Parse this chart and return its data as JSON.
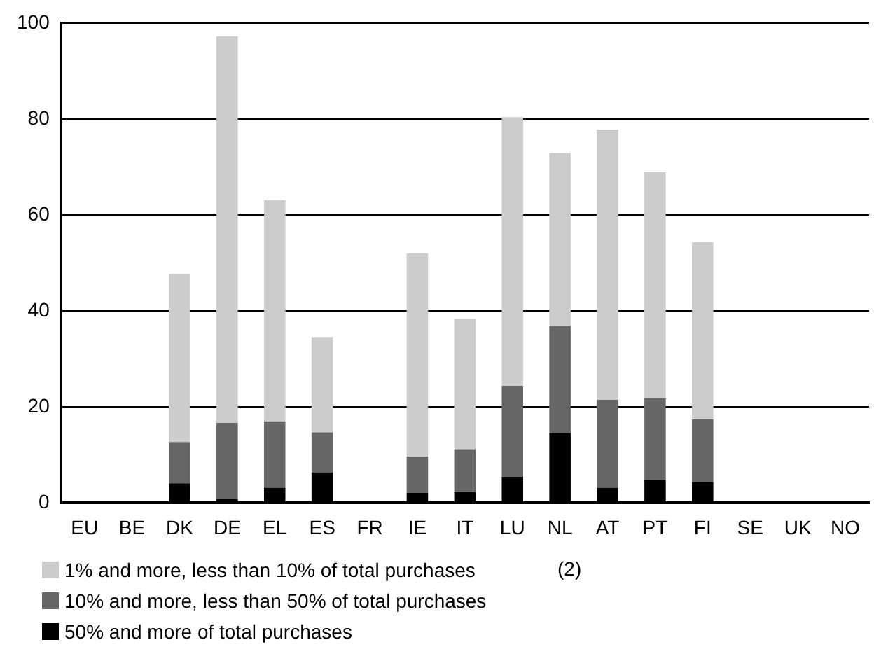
{
  "chart_data": {
    "type": "bar",
    "stacked": true,
    "categories": [
      "EU",
      "BE",
      "DK",
      "DE",
      "EL",
      "ES",
      "FR",
      "IE",
      "IT",
      "LU",
      "NL",
      "AT",
      "PT",
      "FI",
      "SE",
      "UK",
      "NO"
    ],
    "series": [
      {
        "name": "50% and more of total purchases",
        "color": "#000000",
        "values": [
          null,
          null,
          4.1,
          0.9,
          3.2,
          6.4,
          null,
          2.1,
          2.3,
          5.5,
          14.6,
          3.2,
          4.9,
          4.4,
          null,
          null,
          null
        ]
      },
      {
        "name": "10% and more, less than 50% of total purchases",
        "color": "#666666",
        "values": [
          null,
          null,
          8.6,
          15.8,
          13.8,
          8.3,
          null,
          7.6,
          8.9,
          18.9,
          22.3,
          18.3,
          16.9,
          13.0,
          null,
          null,
          null
        ]
      },
      {
        "name": "1% and more, less than 10% of total purchases",
        "color": "#cccccc",
        "values": [
          null,
          null,
          35.0,
          80.5,
          46.1,
          19.9,
          null,
          42.3,
          27.1,
          56.0,
          36.0,
          56.3,
          47.1,
          36.9,
          null,
          null,
          null
        ]
      }
    ],
    "ylim": [
      0,
      100
    ],
    "yticks": [
      0,
      20,
      40,
      60,
      80,
      100
    ],
    "grid": "y",
    "legend": "bottom",
    "annotations": [
      "(2)"
    ]
  }
}
